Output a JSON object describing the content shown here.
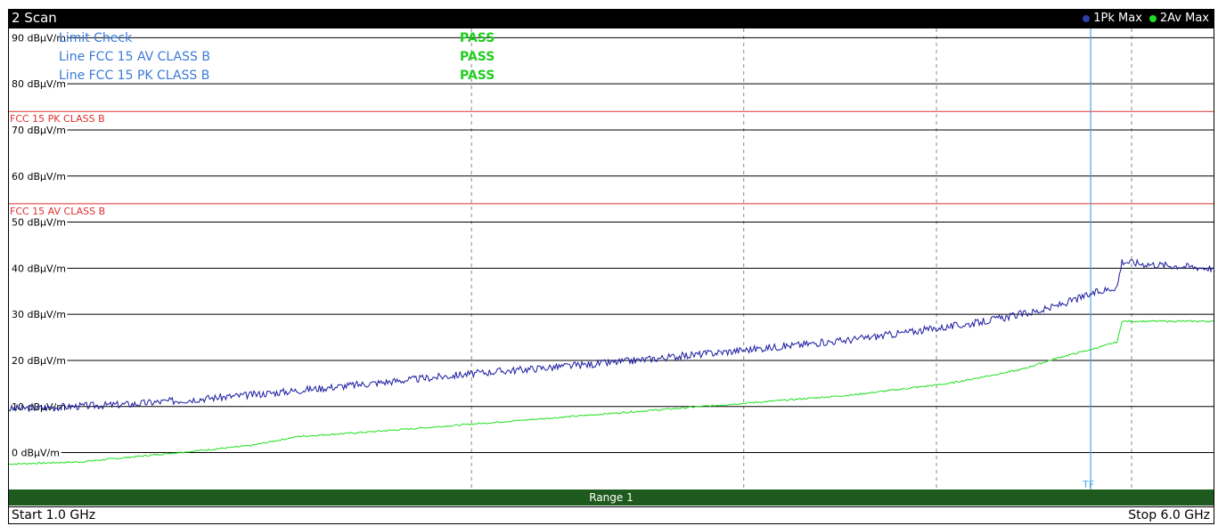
{
  "window": {
    "title": "2 Scan"
  },
  "legend": [
    {
      "label": "1Pk Max",
      "color": "#2f3fa8"
    },
    {
      "label": "2Av Max",
      "color": "#22dd22"
    }
  ],
  "footer": {
    "start": "Start 1.0 GHz",
    "stop": "Stop 6.0 GHz",
    "range": "Range 1"
  },
  "limit_check": {
    "header": "Limit Check",
    "header_result": "PASS",
    "rows": [
      {
        "label": "Line FCC 15 AV CLASS B",
        "result": "PASS"
      },
      {
        "label": "Line FCC 15 PK CLASS B",
        "result": "PASS"
      }
    ]
  },
  "marker_label": "TF",
  "colors": {
    "pk": "#1a1aa0",
    "av": "#22e022",
    "limit": "#e03030",
    "marker": "#4aa8e8",
    "pass": "#22cc22",
    "limit_text": "#3a7ad8"
  },
  "chart_data": {
    "type": "line",
    "x_unit": "GHz",
    "xlim": [
      1.0,
      6.0
    ],
    "ylim": [
      -8,
      92
    ],
    "y_ticks": [
      90,
      80,
      70,
      60,
      50,
      40,
      30,
      20,
      10,
      0
    ],
    "y_tick_labels": [
      "90 dBµV/m",
      "80 dBµV/m",
      "70 dBµV/m",
      "60 dBµV/m",
      "50 dBµV/m",
      "40 dBµV/m",
      "30 dBµV/m",
      "20 dBµV/m",
      "10 dBµV/m",
      "0 dBµV/m"
    ],
    "x_gridlines": [
      2.92,
      4.05,
      4.85,
      5.66
    ],
    "marker_x": 5.49,
    "limits": [
      {
        "name": "FCC 15 PK CLASS B",
        "value": 74
      },
      {
        "name": "FCC 15 AV CLASS B",
        "value": 54
      }
    ],
    "series": [
      {
        "name": "1Pk Max",
        "x": [
          1.0,
          1.5,
          2.0,
          2.5,
          3.0,
          3.5,
          4.0,
          4.5,
          5.0,
          5.3,
          5.5,
          5.6,
          5.62,
          5.7,
          6.0
        ],
        "y": [
          9.5,
          10.5,
          12.5,
          15,
          17.5,
          19.5,
          22,
          24.5,
          28,
          31,
          34.5,
          36,
          41.5,
          41,
          40
        ]
      },
      {
        "name": "2Av Max",
        "x": [
          1.0,
          1.3,
          1.6,
          2.0,
          2.2,
          2.5,
          3.0,
          3.5,
          4.0,
          4.5,
          4.9,
          5.2,
          5.35,
          5.5,
          5.6,
          5.62,
          5.8,
          6.0
        ],
        "y": [
          -2.5,
          -2.0,
          -0.5,
          1.5,
          3.5,
          4.5,
          6.5,
          8.5,
          10.5,
          12.5,
          15,
          18,
          20.5,
          22.5,
          24,
          28.5,
          28.5,
          28.5
        ]
      }
    ]
  }
}
